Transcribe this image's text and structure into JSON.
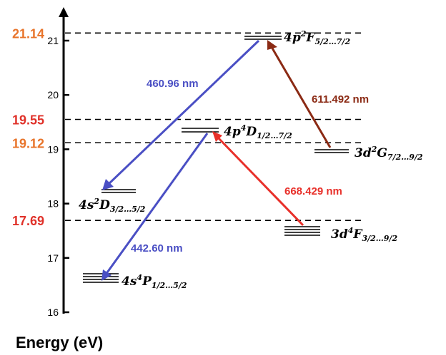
{
  "axis": {
    "title": "Energy (eV)",
    "min": 16,
    "max": 21.4,
    "ticks": [
      "16",
      "17",
      "18",
      "19",
      "20",
      "21"
    ]
  },
  "highlighted_levels": [
    {
      "label": "21.14",
      "value": 21.14,
      "color": "#e8742a"
    },
    {
      "label": "19.55",
      "value": 19.55,
      "color": "#e0322a"
    },
    {
      "label": "19.12",
      "value": 19.12,
      "color": "#e8742a"
    },
    {
      "label": "17.69",
      "value": 17.69,
      "color": "#e0322a"
    }
  ],
  "levels": [
    {
      "id": "4p2F",
      "base": "4p",
      "sup": "2",
      "term": "F",
      "sub": "5/2…7/2",
      "energy": 21.1
    },
    {
      "id": "4p4D",
      "base": "4p",
      "sup": "4",
      "term": "D",
      "sub": "1/2…7/2",
      "energy": 19.5
    },
    {
      "id": "3d2G",
      "base": "3d",
      "sup": "2",
      "term": "G",
      "sub": "7/2…9/2",
      "energy": 19.1
    },
    {
      "id": "4s2D",
      "base": "4s",
      "sup": "2",
      "term": "D",
      "sub": "3/2…5/2",
      "energy": 18.45
    },
    {
      "id": "3d4F",
      "base": "3d",
      "sup": "4",
      "term": "F",
      "sub": "3/2…9/2",
      "energy": 17.7
    },
    {
      "id": "4s4P",
      "base": "4s",
      "sup": "4",
      "term": "P",
      "sub": "1/2…5/2",
      "energy": 16.75
    }
  ],
  "transitions": [
    {
      "label": "460.96 nm",
      "from": "4p2F",
      "to": "4s2D",
      "color": "#4a4fc4"
    },
    {
      "label": "611.492 nm",
      "from": "3d2G",
      "to": "4p2F",
      "color": "#8b2a14"
    },
    {
      "label": "668.429 nm",
      "from": "3d4F",
      "to": "4p4D",
      "color": "#e8302a"
    },
    {
      "label": "442.60 nm",
      "from": "4p4D",
      "to": "4s4P",
      "color": "#4a4fc4"
    }
  ]
}
